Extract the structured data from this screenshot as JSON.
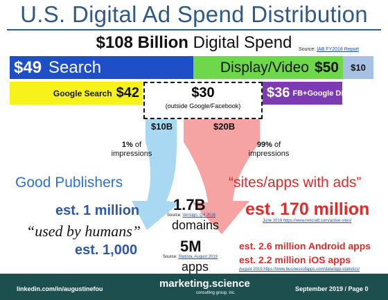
{
  "header": {
    "title": "U.S. Digital Ad Spend Distribution",
    "subtitle_amount": "$108 Billion",
    "subtitle_text": "Digital Spend",
    "source_prefix": "Source:",
    "source_link": "IAB FY2018 Report"
  },
  "bars": {
    "search_amount": "$49",
    "search_label": "Search",
    "display_label": "Display/Video",
    "display_amount": "$50",
    "other_amount": "$10",
    "google_search_label": "Google Search",
    "google_search_amount": "$42",
    "outside_amount": "$30",
    "outside_label": "(outside Google/Facebook)",
    "fb_google_amount": "$36",
    "fb_google_label": "FB+Google Display"
  },
  "flows": {
    "left_amount": "$10B",
    "right_amount": "$20B",
    "left_pct": "1%",
    "left_pct_suffix": "of",
    "left_pct_line2": "impressions",
    "right_pct": "99%",
    "right_pct_suffix": "of",
    "right_pct_line2": "impressions",
    "left_color": "#a9d8f2",
    "right_color": "#f5a3a3"
  },
  "left_side": {
    "heading": "Good Publishers",
    "est_million": "est. 1 million",
    "used_by_humans": "“used by humans”",
    "est_thousand": "est. 1,000"
  },
  "center": {
    "domains_value": "1.7B",
    "domains_source_prefix": "Source:",
    "domains_source_link": "Verisign, Q4 2016",
    "domains_label": "domains",
    "apps_value": "5M",
    "apps_source_prefix": "Source:",
    "apps_source_link": "Statista, August 2019",
    "apps_label": "apps"
  },
  "right_side": {
    "heading": "“sites/apps with ads”",
    "est_170": "est. 170 million",
    "est_170_source": "June 2019 https://www.netcraft.com/active-sites/",
    "android": "est. 2.6 million Android apps",
    "ios": "est. 2.2 million iOS apps",
    "apps_source": "August 2019 https://www.businessofapps.com/data/app-statistics/"
  },
  "footer": {
    "left": "linkedin.com/in/augustinefou",
    "brand": "marketing.science",
    "brand_sub": "consulting group, inc.",
    "right": "September 2019 / Page 0"
  }
}
